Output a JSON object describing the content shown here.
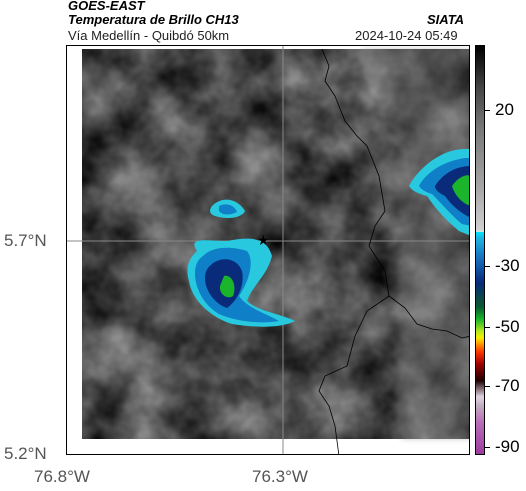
{
  "header": {
    "satellite": "GOES-EAST",
    "product": "Temperatura de Brillo CH13",
    "route": "Vía Medellín - Quibdó 50km",
    "agency": "SIATA",
    "datetime": "2024-10-24 05:49"
  },
  "axes": {
    "lat_labels": [
      "5.7°N",
      "5.2°N"
    ],
    "lon_labels": [
      "76.8°W",
      "76.3°W"
    ]
  },
  "colorbar": {
    "labels": [
      "20",
      "-30",
      "-50",
      "-70",
      "-90"
    ]
  },
  "marker": {
    "symbol": "★",
    "name": "location-star"
  },
  "colors": {
    "cloud_cold": "#0a2b7a",
    "cloud_mid": "#0f7fc7",
    "cloud_edge": "#28c8df",
    "core": "#1ab52a",
    "gray_dark": "#5a5a5a",
    "gray_light": "#e8e8e8"
  }
}
